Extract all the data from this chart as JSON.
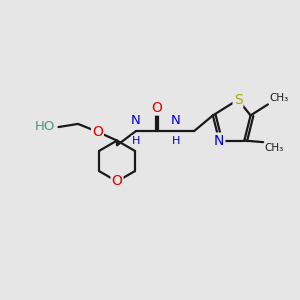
{
  "background_color": "#e6e6e6",
  "figsize": [
    3.0,
    3.0
  ],
  "dpi": 100,
  "xlim": [
    0,
    9.5
  ],
  "ylim": [
    0,
    7.5
  ],
  "black": "#1a1a1a",
  "red": "#dd0000",
  "blue": "#0000cc",
  "green": "#4a9a7a",
  "yellow": "#aaaa00",
  "lw": 1.6
}
